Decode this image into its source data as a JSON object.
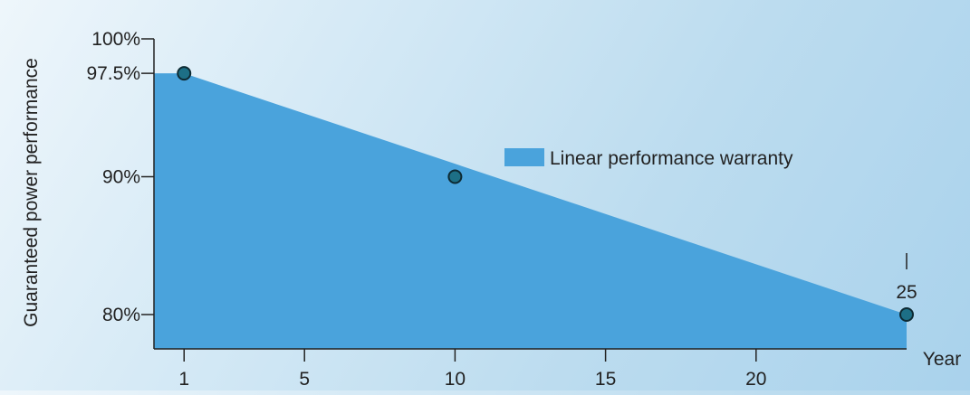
{
  "chart_data": {
    "type": "area",
    "ylabel": "Guaranteed power performance",
    "xlabel": "Year",
    "legend": "Linear performance warranty",
    "legend_placement": "center-right",
    "x_ticks": [
      "1",
      "5",
      "10",
      "15",
      "20"
    ],
    "x_end_label": "25",
    "y_ticks": [
      "100%",
      "97.5%",
      "90%",
      "80%"
    ],
    "xlim": [
      0,
      25
    ],
    "ylim": [
      77.5,
      100
    ],
    "area": [
      {
        "x": 0,
        "y": 97.5
      },
      {
        "x": 1,
        "y": 97.5
      },
      {
        "x": 25,
        "y": 80
      }
    ],
    "points": [
      {
        "x": 1,
        "y": 97.5
      },
      {
        "x": 10,
        "y": 90
      },
      {
        "x": 25,
        "y": 80
      }
    ],
    "colors": {
      "area": "#4aa3dc",
      "point_fill": "#1d6f86",
      "point_stroke": "#0d2a33",
      "axis": "#222222"
    }
  }
}
